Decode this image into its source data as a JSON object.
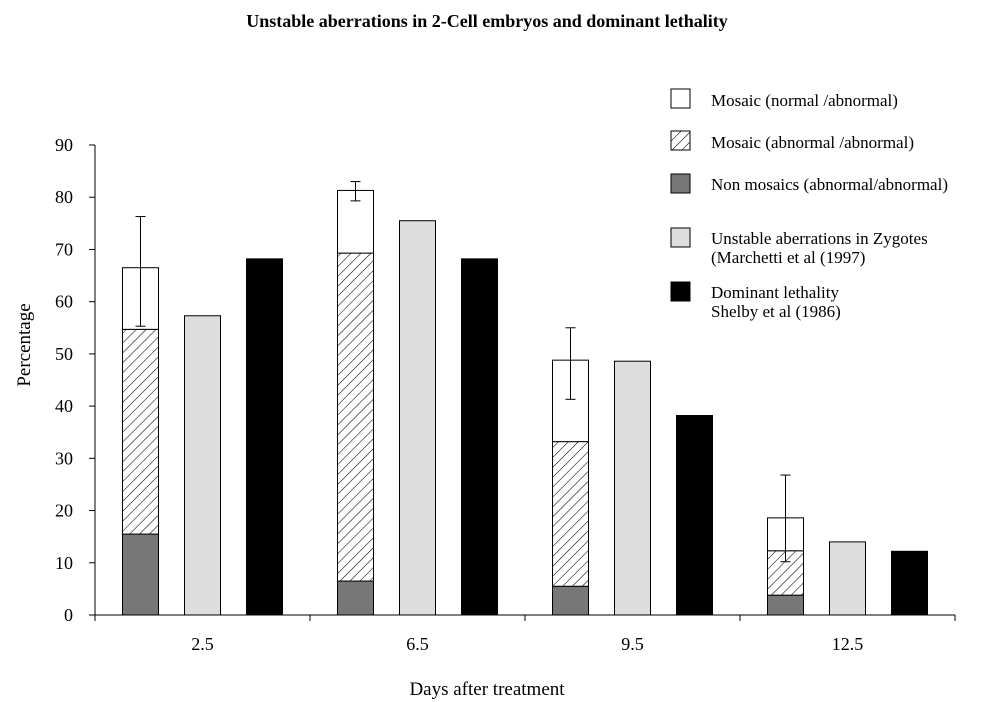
{
  "chart_data": {
    "type": "bar",
    "title": "Unstable aberrations in 2-Cell embryos and dominant lethality",
    "xlabel": "Days after treatment",
    "ylabel": "Percentage",
    "ylim": [
      0,
      90
    ],
    "yticks": [
      0,
      10,
      20,
      30,
      40,
      50,
      60,
      70,
      80,
      90
    ],
    "categories": [
      "2.5",
      "6.5",
      "9.5",
      "12.5"
    ],
    "grid": false,
    "legend_position": "top-right",
    "stacked_series": [
      {
        "name": "Non mosaics (abnormal/abnormal)",
        "color": "#777777",
        "pattern": "solid",
        "values": [
          15.5,
          6.5,
          5.5,
          3.8
        ]
      },
      {
        "name": "Mosaic (abnormal /abnormal)",
        "color": "#ffffff",
        "pattern": "hatch",
        "values": [
          39.2,
          62.8,
          27.7,
          8.5
        ]
      },
      {
        "name": "Mosaic (normal /abnormal)",
        "color": "#ffffff",
        "pattern": "solid",
        "values": [
          11.8,
          12.0,
          15.6,
          6.3
        ]
      }
    ],
    "stack_totals": [
      66.5,
      81.3,
      48.8,
      18.6
    ],
    "error_bars": [
      {
        "low": 55.3,
        "high": 76.3
      },
      {
        "low": 79.3,
        "high": 83.0
      },
      {
        "low": 41.3,
        "high": 55.0
      },
      {
        "low": 10.2,
        "high": 26.8
      }
    ],
    "zygote_series": {
      "name": "Unstable aberrations in Zygotes",
      "name_line2": "(Marchetti et al (1997)",
      "color": "#dddddd",
      "values": [
        57.3,
        75.5,
        48.6,
        14.0
      ]
    },
    "lethality_series": {
      "name": "Dominant lethality",
      "name_line2": "Shelby et al (1986)",
      "color": "#000000",
      "values": [
        68.2,
        68.2,
        38.2,
        12.2
      ]
    }
  }
}
